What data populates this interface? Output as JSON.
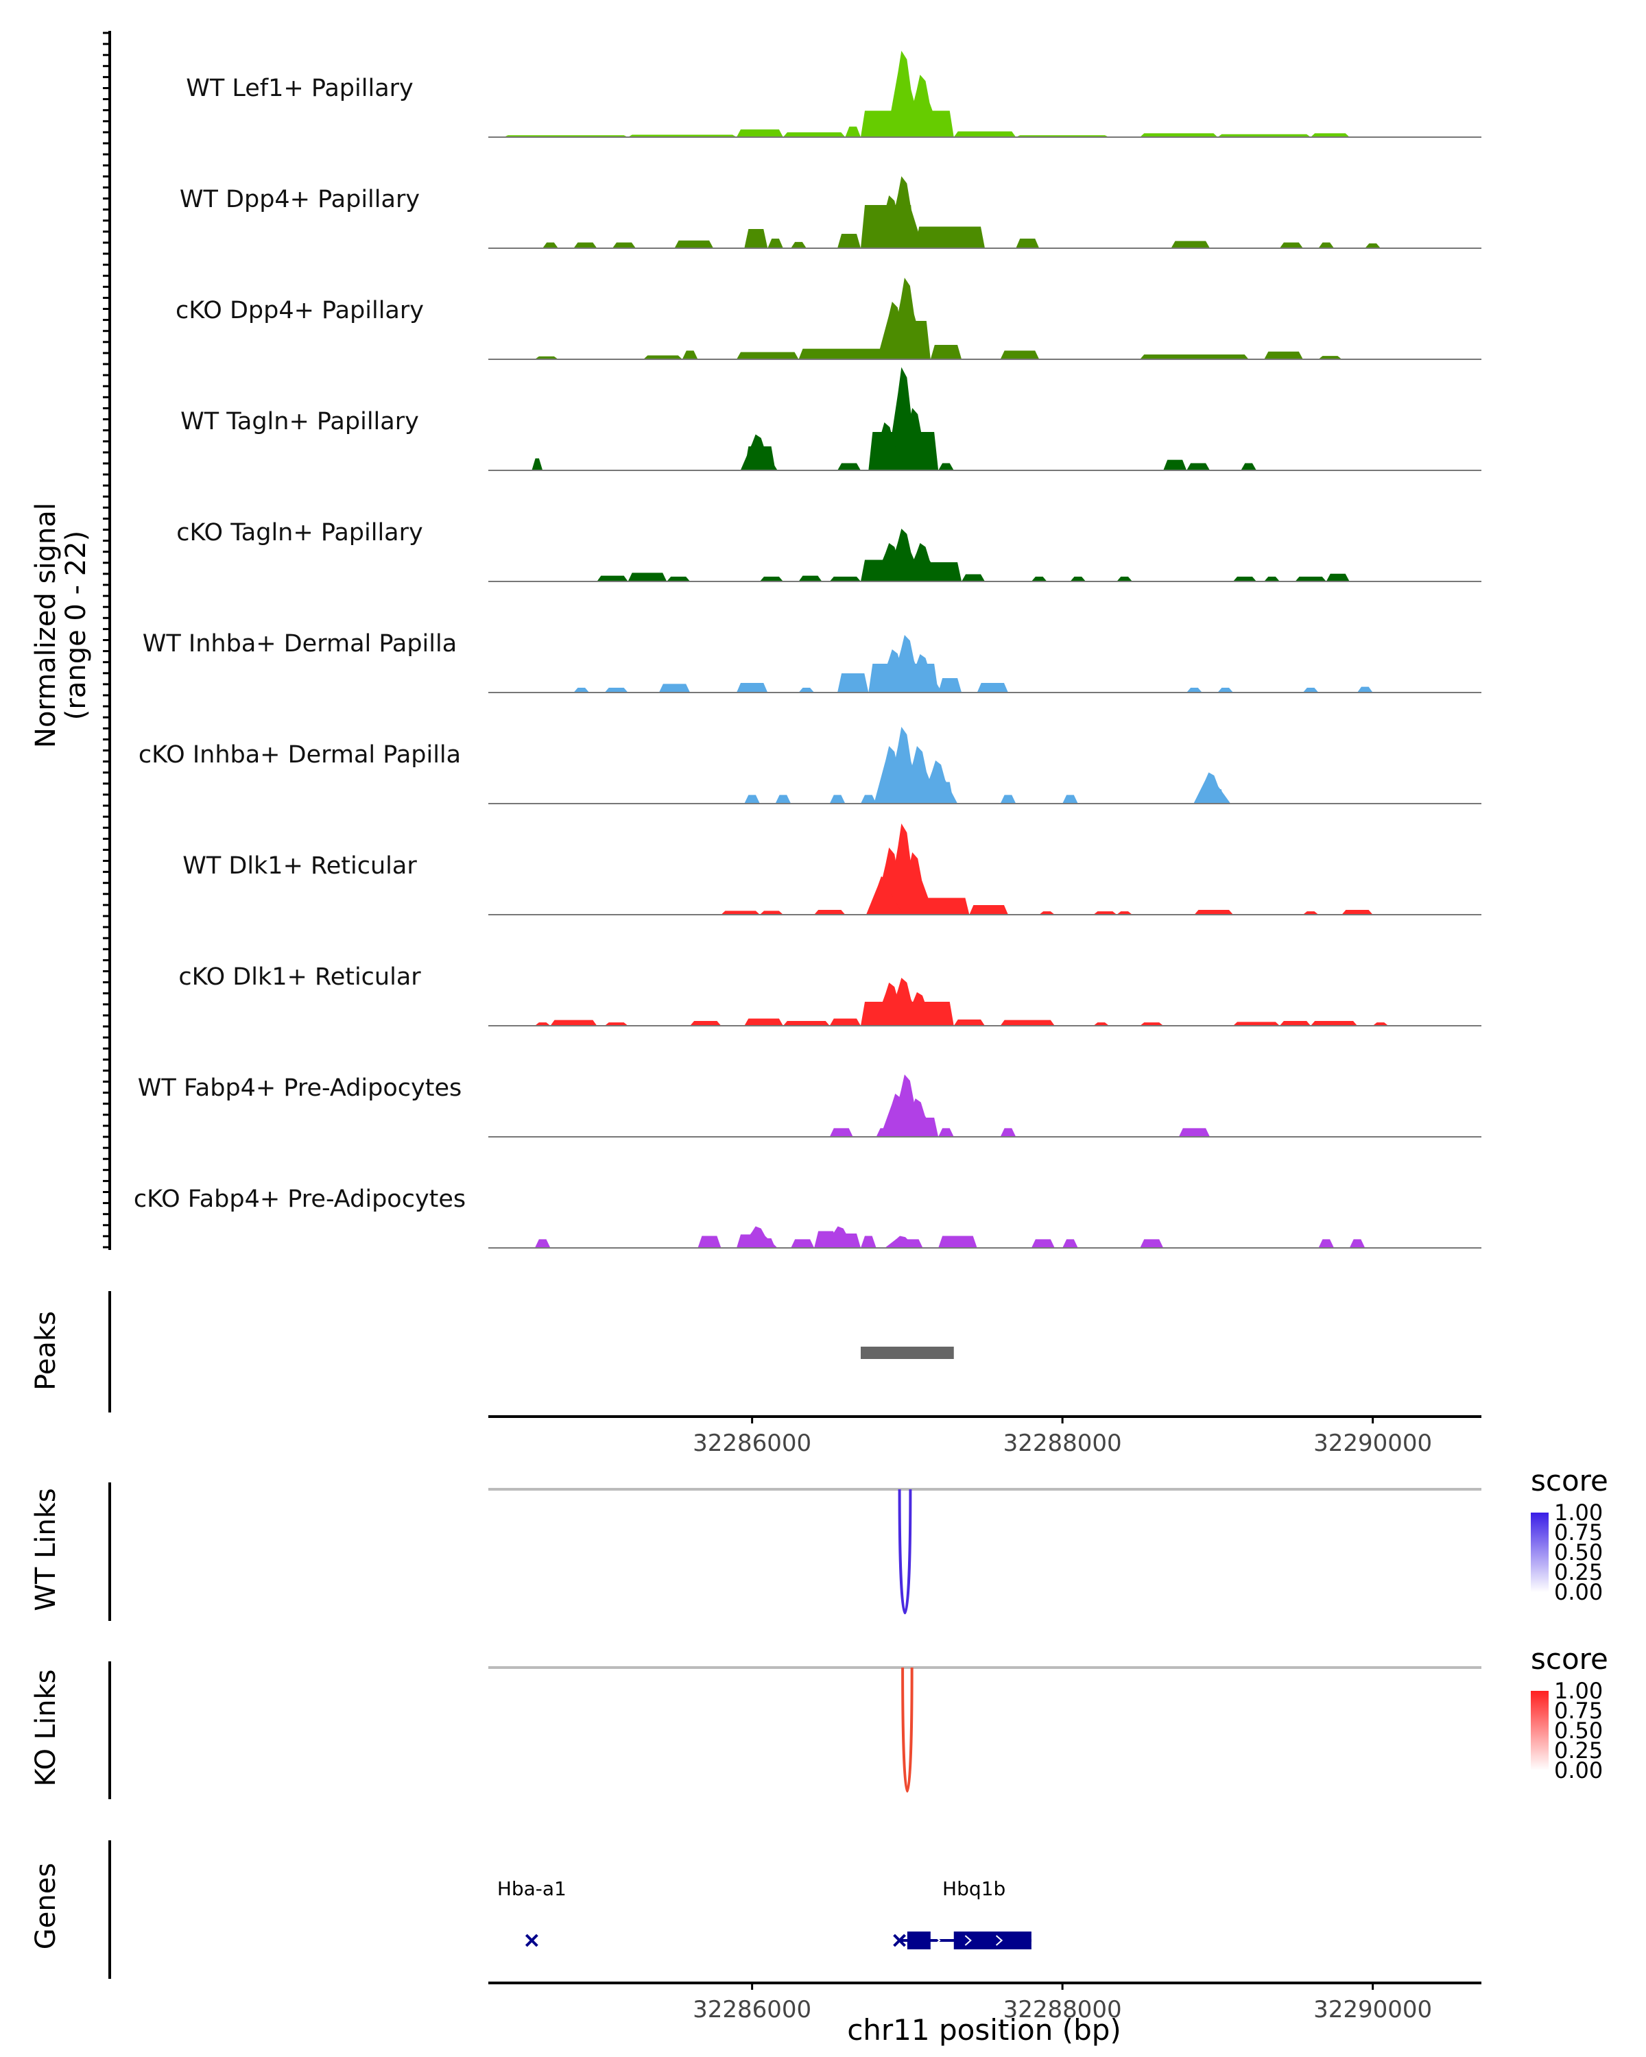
{
  "chart_data": {
    "type": "area",
    "title": "",
    "chromosome": "chr11",
    "xlabel": "chr11 position (bp)",
    "xlim": [
      32284300,
      32290700
    ],
    "x_ticks": [
      32286000,
      32288000,
      32290000
    ],
    "x_tick_labels": [
      "32286000",
      "32288000",
      "32290000"
    ],
    "coverage": {
      "ylabel_line1": "Normalized signal",
      "ylabel_line2": "(range 0 - 22)",
      "ylim": [
        0,
        22
      ],
      "tracks": [
        {
          "name": "WT Lef1+ Papillary",
          "color": "#66cc00",
          "blocks": [
            [
              32284400,
              32285200,
              0.4
            ],
            [
              32285200,
              32285900,
              0.5
            ],
            [
              32285900,
              32286200,
              1.6
            ],
            [
              32286200,
              32286600,
              1.0
            ],
            [
              32286600,
              32286700,
              2.2
            ],
            [
              32286700,
              32287300,
              5.5
            ],
            [
              32287300,
              32287700,
              1.2
            ],
            [
              32287700,
              32288300,
              0.4
            ],
            [
              32288500,
              32289000,
              0.8
            ],
            [
              32289000,
              32289600,
              0.6
            ],
            [
              32289600,
              32289850,
              0.8
            ]
          ],
          "spikes": [
            [
              32286980,
              18.0
            ],
            [
              32287100,
              13.0
            ]
          ]
        },
        {
          "name": "WT Dpp4+ Papillary",
          "color": "#4c8c00",
          "blocks": [
            [
              32284650,
              32284750,
              1.2
            ],
            [
              32284850,
              32285000,
              1.2
            ],
            [
              32285100,
              32285250,
              1.2
            ],
            [
              32285500,
              32285750,
              1.6
            ],
            [
              32285950,
              32286100,
              4.0
            ],
            [
              32286100,
              32286200,
              2.0
            ],
            [
              32286250,
              32286350,
              1.3
            ],
            [
              32286550,
              32286700,
              3.0
            ],
            [
              32286700,
              32287050,
              9.0
            ],
            [
              32287050,
              32287500,
              4.5
            ],
            [
              32287700,
              32287850,
              2.0
            ],
            [
              32288700,
              32288950,
              1.5
            ],
            [
              32289400,
              32289550,
              1.2
            ],
            [
              32289650,
              32289750,
              1.2
            ],
            [
              32289950,
              32290050,
              1.0
            ]
          ],
          "spikes": [
            [
              32286980,
              15.0
            ],
            [
              32286900,
              11.0
            ]
          ]
        },
        {
          "name": "cKO Dpp4+ Papillary",
          "color": "#4c8c00",
          "blocks": [
            [
              32284600,
              32284750,
              0.6
            ],
            [
              32285300,
              32285550,
              0.8
            ],
            [
              32285550,
              32285650,
              1.8
            ],
            [
              32285900,
              32286300,
              1.5
            ],
            [
              32286300,
              32286900,
              2.2
            ],
            [
              32286900,
              32287150,
              8.0
            ],
            [
              32287150,
              32287350,
              3.0
            ],
            [
              32287600,
              32287850,
              1.8
            ],
            [
              32288500,
              32289200,
              1.0
            ],
            [
              32289300,
              32289550,
              1.6
            ],
            [
              32289650,
              32289800,
              0.7
            ]
          ],
          "spikes": [
            [
              32287000,
              17.0
            ],
            [
              32286920,
              12.0
            ]
          ]
        },
        {
          "name": "WT Tagln+ Papillary",
          "color": "#006400",
          "blocks": [
            [
              32284580,
              32284650,
              2.5
            ],
            [
              32285950,
              32286150,
              5.0
            ],
            [
              32286550,
              32286700,
              1.5
            ],
            [
              32286750,
              32287200,
              8.0
            ],
            [
              32287200,
              32287300,
              1.5
            ],
            [
              32288650,
              32288800,
              2.2
            ],
            [
              32288800,
              32288950,
              1.5
            ],
            [
              32289150,
              32289250,
              1.5
            ]
          ],
          "spikes": [
            [
              32286980,
              21.5
            ],
            [
              32287050,
              13.0
            ],
            [
              32286870,
              10.0
            ],
            [
              32286040,
              7.5
            ]
          ]
        },
        {
          "name": "cKO Tagln+ Papillary",
          "color": "#006400",
          "blocks": [
            [
              32285000,
              32285200,
              1.2
            ],
            [
              32285200,
              32285450,
              1.8
            ],
            [
              32285450,
              32285600,
              1.0
            ],
            [
              32286050,
              32286200,
              1.0
            ],
            [
              32286300,
              32286450,
              1.2
            ],
            [
              32286500,
              32286700,
              1.0
            ],
            [
              32286700,
              32287000,
              4.5
            ],
            [
              32287000,
              32287350,
              4.0
            ],
            [
              32287350,
              32287500,
              1.5
            ],
            [
              32287800,
              32287900,
              1.0
            ],
            [
              32288050,
              32288150,
              1.0
            ],
            [
              32288350,
              32288450,
              1.0
            ],
            [
              32289100,
              32289250,
              1.0
            ],
            [
              32289300,
              32289400,
              1.0
            ],
            [
              32289500,
              32289700,
              1.0
            ],
            [
              32289700,
              32289850,
              1.6
            ]
          ],
          "spikes": [
            [
              32286980,
              11.0
            ],
            [
              32286900,
              8.0
            ],
            [
              32287100,
              8.0
            ]
          ]
        },
        {
          "name": "WT Inhba+ Dermal Papilla",
          "color": "#5aaae6",
          "blocks": [
            [
              32284850,
              32284950,
              1.0
            ],
            [
              32285050,
              32285200,
              1.0
            ],
            [
              32285400,
              32285600,
              1.8
            ],
            [
              32285900,
              32286100,
              2.0
            ],
            [
              32286300,
              32286400,
              1.0
            ],
            [
              32286550,
              32286750,
              4.0
            ],
            [
              32286750,
              32287200,
              6.0
            ],
            [
              32287200,
              32287350,
              3.0
            ],
            [
              32287450,
              32287650,
              2.0
            ],
            [
              32288800,
              32288900,
              1.0
            ],
            [
              32289000,
              32289100,
              1.0
            ],
            [
              32289550,
              32289650,
              1.0
            ],
            [
              32289900,
              32290000,
              1.2
            ]
          ],
          "spikes": [
            [
              32287000,
              12.0
            ],
            [
              32286920,
              9.0
            ],
            [
              32287100,
              8.0
            ]
          ]
        },
        {
          "name": "cKO Inhba+ Dermal Papilla",
          "color": "#5aaae6",
          "blocks": [
            [
              32285950,
              32286050,
              1.8
            ],
            [
              32286150,
              32286250,
              1.8
            ],
            [
              32286500,
              32286600,
              1.8
            ],
            [
              32286700,
              32286800,
              1.8
            ],
            [
              32286800,
              32287300,
              4.5
            ],
            [
              32287600,
              32287700,
              1.8
            ],
            [
              32288000,
              32288100,
              1.8
            ],
            [
              32288900,
              32289050,
              3.0
            ]
          ],
          "spikes": [
            [
              32286980,
              16.0
            ],
            [
              32286900,
              12.0
            ],
            [
              32287080,
              12.0
            ],
            [
              32287200,
              9.0
            ],
            [
              32288960,
              6.5
            ]
          ]
        },
        {
          "name": "WT Dlk1+ Reticular",
          "color": "#ff2828",
          "blocks": [
            [
              32285800,
              32286050,
              0.8
            ],
            [
              32286050,
              32286200,
              0.8
            ],
            [
              32286400,
              32286600,
              1.0
            ],
            [
              32286800,
              32286950,
              0.8
            ],
            [
              32287050,
              32287400,
              3.5
            ],
            [
              32287400,
              32287650,
              2.0
            ],
            [
              32287850,
              32287950,
              0.7
            ],
            [
              32288200,
              32288350,
              0.7
            ],
            [
              32288350,
              32288450,
              0.7
            ],
            [
              32288850,
              32289100,
              1.0
            ],
            [
              32289550,
              32289650,
              0.7
            ],
            [
              32289800,
              32290000,
              1.0
            ]
          ],
          "spikes": [
            [
              32286980,
              19.0
            ],
            [
              32286900,
              14.0
            ],
            [
              32287050,
              13.0
            ],
            [
              32286850,
              8.0
            ]
          ]
        },
        {
          "name": "cKO Dlk1+ Reticular",
          "color": "#ff2828",
          "blocks": [
            [
              32284600,
              32284700,
              0.7
            ],
            [
              32284700,
              32285000,
              1.2
            ],
            [
              32285050,
              32285200,
              0.7
            ],
            [
              32285600,
              32285800,
              1.0
            ],
            [
              32285950,
              32286200,
              1.5
            ],
            [
              32286200,
              32286500,
              1.0
            ],
            [
              32286500,
              32286700,
              1.5
            ],
            [
              32286700,
              32287300,
              5.0
            ],
            [
              32287300,
              32287500,
              1.3
            ],
            [
              32287600,
              32287950,
              1.2
            ],
            [
              32288200,
              32288300,
              0.7
            ],
            [
              32288500,
              32288650,
              0.7
            ],
            [
              32289100,
              32289400,
              0.8
            ],
            [
              32289400,
              32289600,
              1.0
            ],
            [
              32289600,
              32289900,
              1.0
            ],
            [
              32290000,
              32290100,
              0.7
            ]
          ],
          "spikes": [
            [
              32286980,
              10.0
            ],
            [
              32286900,
              9.0
            ],
            [
              32287080,
              7.0
            ]
          ]
        },
        {
          "name": "WT Fabp4+ Pre-Adipocytes",
          "color": "#b140e6",
          "blocks": [
            [
              32286500,
              32286650,
              1.8
            ],
            [
              32286800,
              32286900,
              1.8
            ],
            [
              32286900,
              32287200,
              4.0
            ],
            [
              32287200,
              32287300,
              1.8
            ],
            [
              32287600,
              32287700,
              1.8
            ],
            [
              32288750,
              32288950,
              1.8
            ]
          ],
          "spikes": [
            [
              32287000,
              13.0
            ],
            [
              32286940,
              9.0
            ],
            [
              32287070,
              8.0
            ]
          ]
        },
        {
          "name": "cKO Fabp4+ Pre-Adipocytes",
          "color": "#b140e6",
          "blocks": [
            [
              32284600,
              32284700,
              1.8
            ],
            [
              32285650,
              32285800,
              2.5
            ],
            [
              32285900,
              32286050,
              2.8
            ],
            [
              32286050,
              32286150,
              2.0
            ],
            [
              32286250,
              32286400,
              1.8
            ],
            [
              32286400,
              32286550,
              3.5
            ],
            [
              32286550,
              32286700,
              3.0
            ],
            [
              32286700,
              32286800,
              2.5
            ],
            [
              32286900,
              32287100,
              1.8
            ],
            [
              32287200,
              32287450,
              2.5
            ],
            [
              32287800,
              32287950,
              1.8
            ],
            [
              32288000,
              32288100,
              1.8
            ],
            [
              32288500,
              32288650,
              1.8
            ],
            [
              32289650,
              32289750,
              1.8
            ],
            [
              32289850,
              32289950,
              1.8
            ]
          ],
          "spikes": [
            [
              32286040,
              4.5
            ],
            [
              32286570,
              4.5
            ],
            [
              32286970,
              2.5
            ]
          ]
        }
      ]
    },
    "peaks": {
      "label": "Peaks",
      "regions": [
        [
          32286700,
          32287300
        ]
      ],
      "color": "#666666"
    },
    "links": [
      {
        "label": "WT Links",
        "score_title": "score",
        "score_ticks": [
          "1.00",
          "0.75",
          "0.50",
          "0.25",
          "0.00"
        ],
        "gradient": [
          "#ffffff",
          "#3a1ee6"
        ],
        "arc_color": "#4a2ae0",
        "arcs": [
          [
            32286950,
            32287020,
            1.0
          ]
        ]
      },
      {
        "label": "KO Links",
        "score_title": "score",
        "score_ticks": [
          "1.00",
          "0.75",
          "0.50",
          "0.25",
          "0.00"
        ],
        "gradient": [
          "#ffffff",
          "#ff2020"
        ],
        "arc_color": "#ee4a30",
        "arcs": [
          [
            32286970,
            32287030,
            1.0
          ]
        ]
      }
    ],
    "genes": {
      "label": "Genes",
      "color": "#00008b",
      "items": [
        {
          "name": "Hba-a1",
          "marker_pos": 32284580,
          "label_pos": 32284580
        },
        {
          "name": "Hbq1b",
          "marker_pos": 32286950,
          "label_pos": 32287430,
          "exons": [
            [
              32287000,
              32287150
            ],
            [
              32287300,
              32287800
            ]
          ],
          "intron": [
            32286950,
            32287800
          ]
        }
      ]
    }
  }
}
